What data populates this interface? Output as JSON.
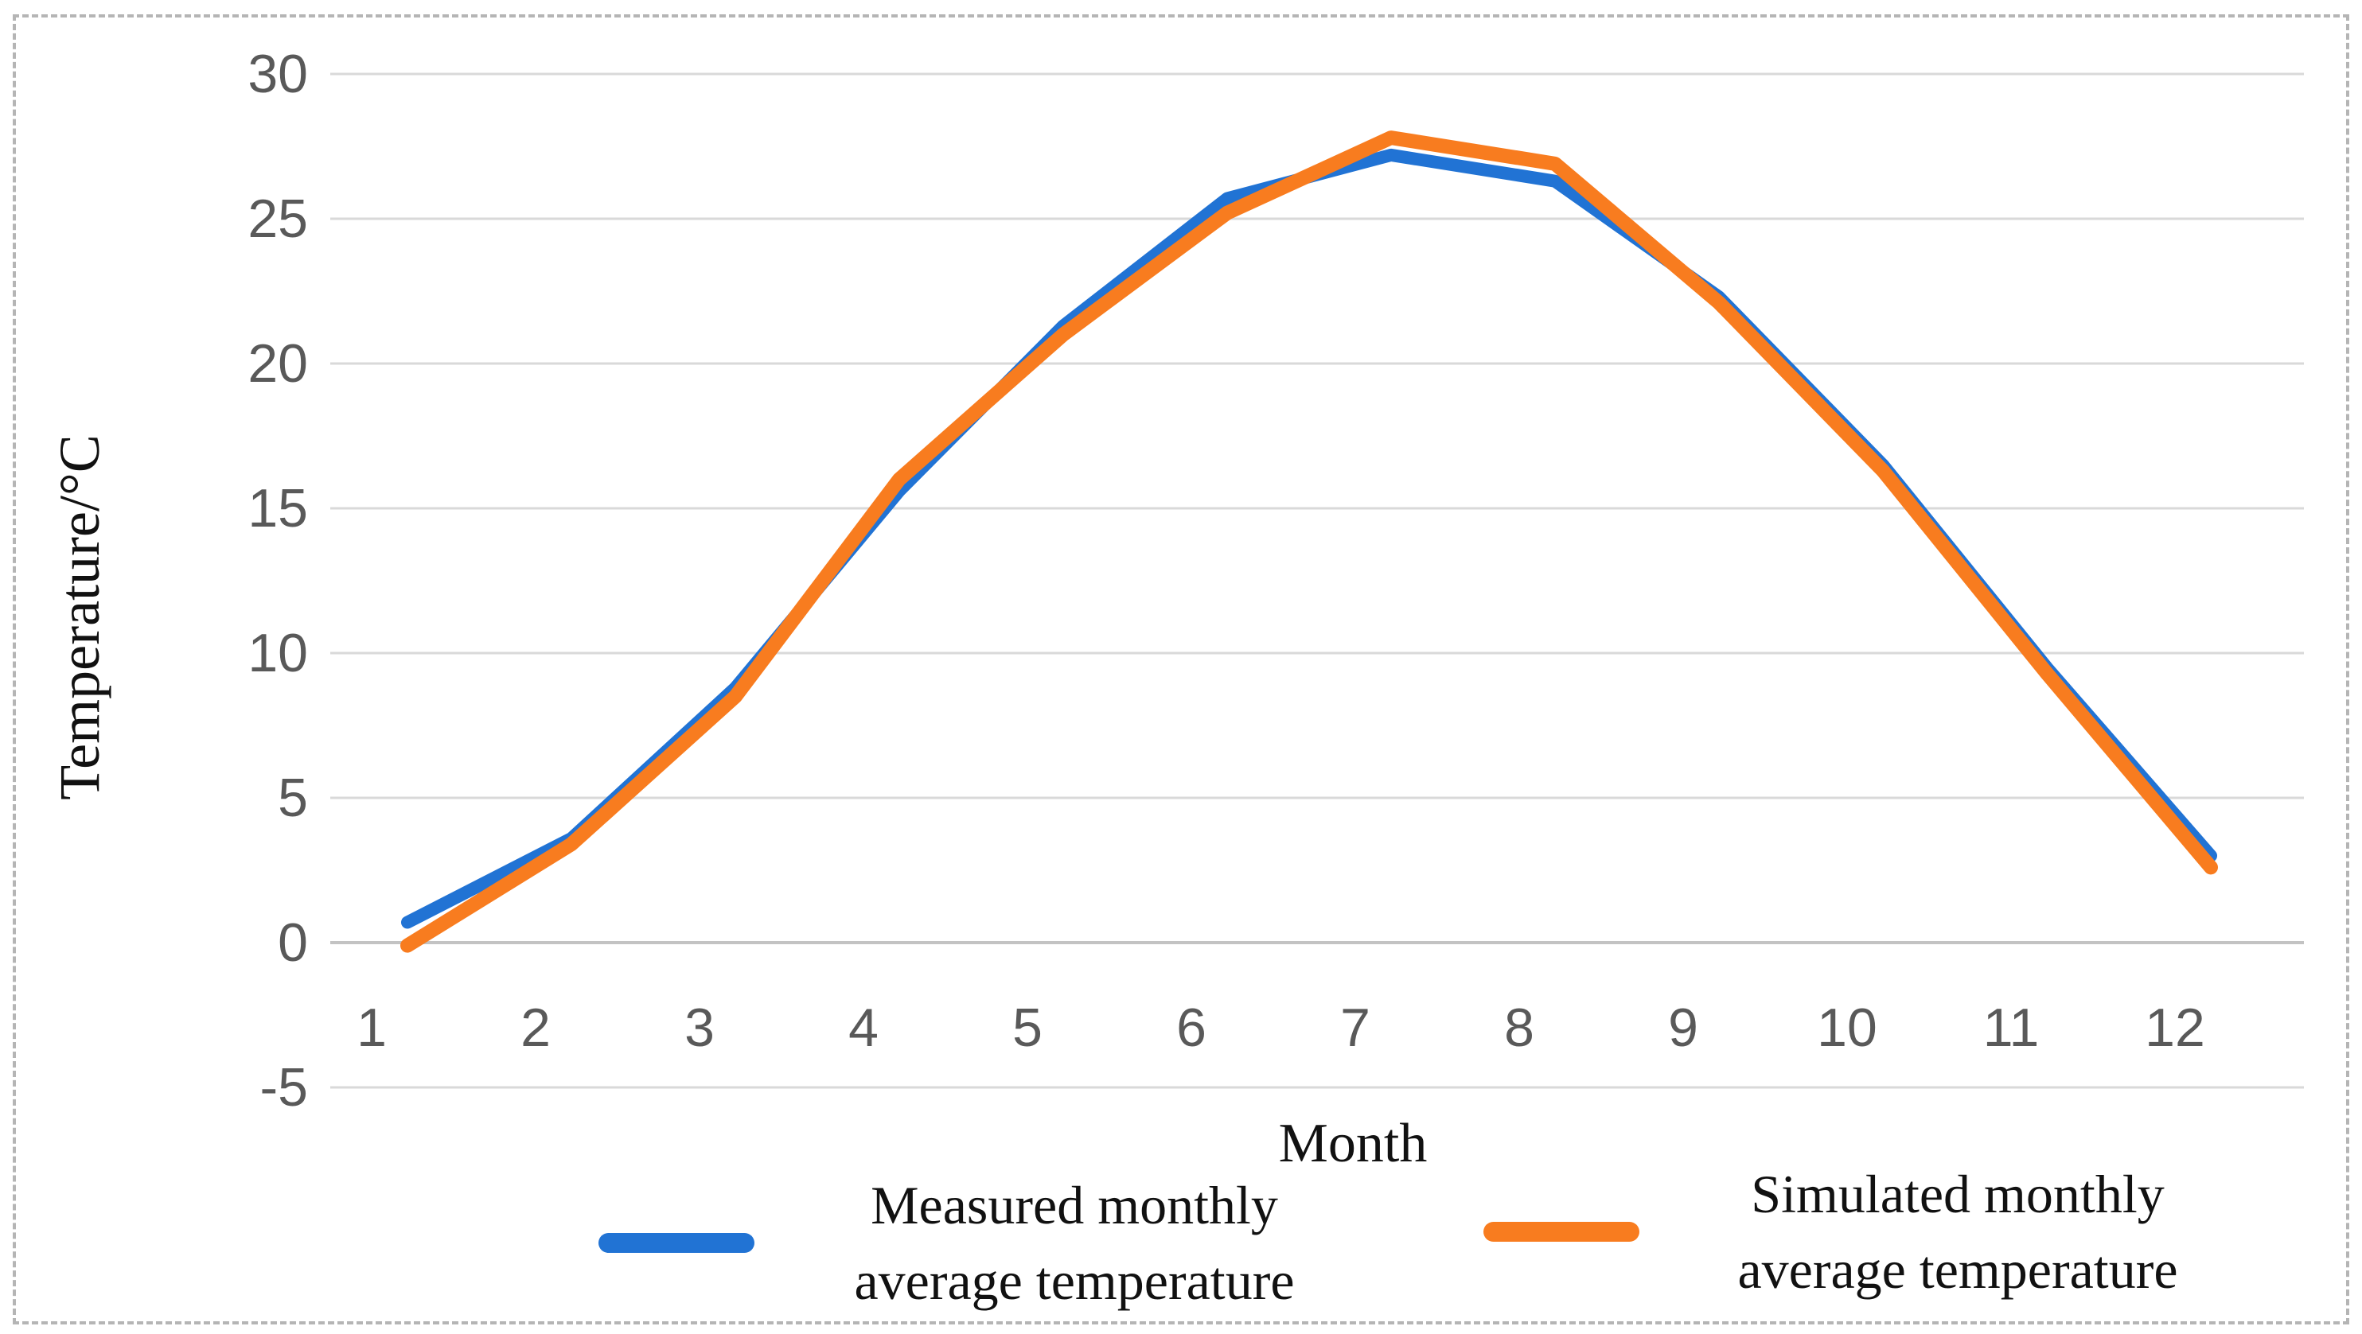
{
  "chart_data": {
    "type": "line",
    "title": "",
    "xlabel": "Month",
    "ylabel": "Temperature/°C",
    "categories": [
      "1",
      "2",
      "3",
      "4",
      "5",
      "6",
      "7",
      "8",
      "9",
      "10",
      "11",
      "12"
    ],
    "y_ticks": [
      30,
      25,
      20,
      15,
      10,
      5,
      0,
      -5
    ],
    "ylim": [
      -5,
      30
    ],
    "grid": "horizontal",
    "legend_position": "bottom",
    "series": [
      {
        "name": "Measured monthly average temperature",
        "color": "#2173d4",
        "values": [
          0.7,
          3.6,
          8.8,
          15.6,
          21.3,
          25.7,
          27.2,
          26.3,
          22.3,
          16.5,
          9.5,
          3.0
        ]
      },
      {
        "name": "Simulated monthly average temperature",
        "color": "#f87c1f",
        "values": [
          -0.1,
          3.4,
          8.5,
          16.0,
          21.0,
          25.2,
          27.8,
          26.9,
          22.1,
          16.3,
          9.3,
          2.6
        ]
      }
    ],
    "colors": {
      "gridline": "#d9d9d9",
      "zero_axis_line": "#c3c3c3",
      "tick_label": "#595959",
      "axis_title": "#111111",
      "frame_dash": "#b5b5b5"
    }
  },
  "legend": {
    "items": [
      {
        "line1": "Measured monthly",
        "line2": "average temperature"
      },
      {
        "line1": "Simulated monthly",
        "line2": "average temperature"
      }
    ]
  }
}
